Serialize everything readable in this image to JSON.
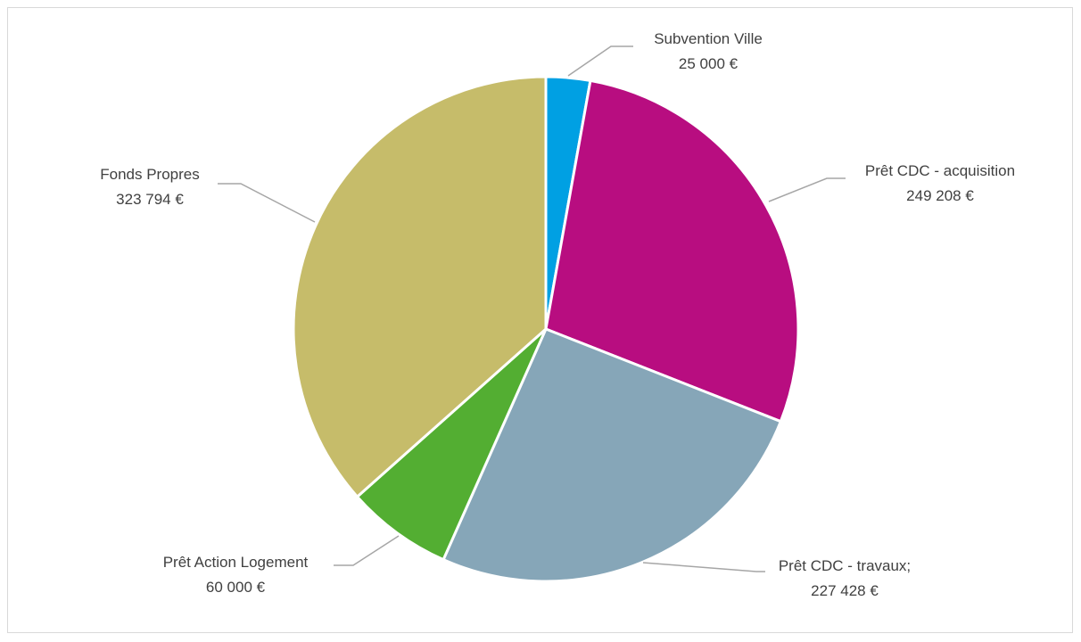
{
  "chart_data": {
    "type": "pie",
    "title": "",
    "start_angle_deg": 0,
    "direction": "clockwise",
    "slices": [
      {
        "label": "Subvention Ville",
        "value": 25000,
        "value_label": "25 000 €",
        "color": "#00a0e3"
      },
      {
        "label": "Prêt CDC - acquisition",
        "value": 249208,
        "value_label": "249 208 €",
        "color": "#b80d80"
      },
      {
        "label": "Prêt CDC - travaux;",
        "value": 227428,
        "value_label": "227 428 €",
        "color": "#86a6b8"
      },
      {
        "label": "Prêt Action Logement",
        "value": 60000,
        "value_label": "60 000 €",
        "color": "#53ae32"
      },
      {
        "label": "Fonds Propres",
        "value": 323794,
        "value_label": "323 794 €",
        "color": "#c6bc6a"
      }
    ],
    "legend": "none",
    "data_labels": "outside-with-leader-lines"
  }
}
